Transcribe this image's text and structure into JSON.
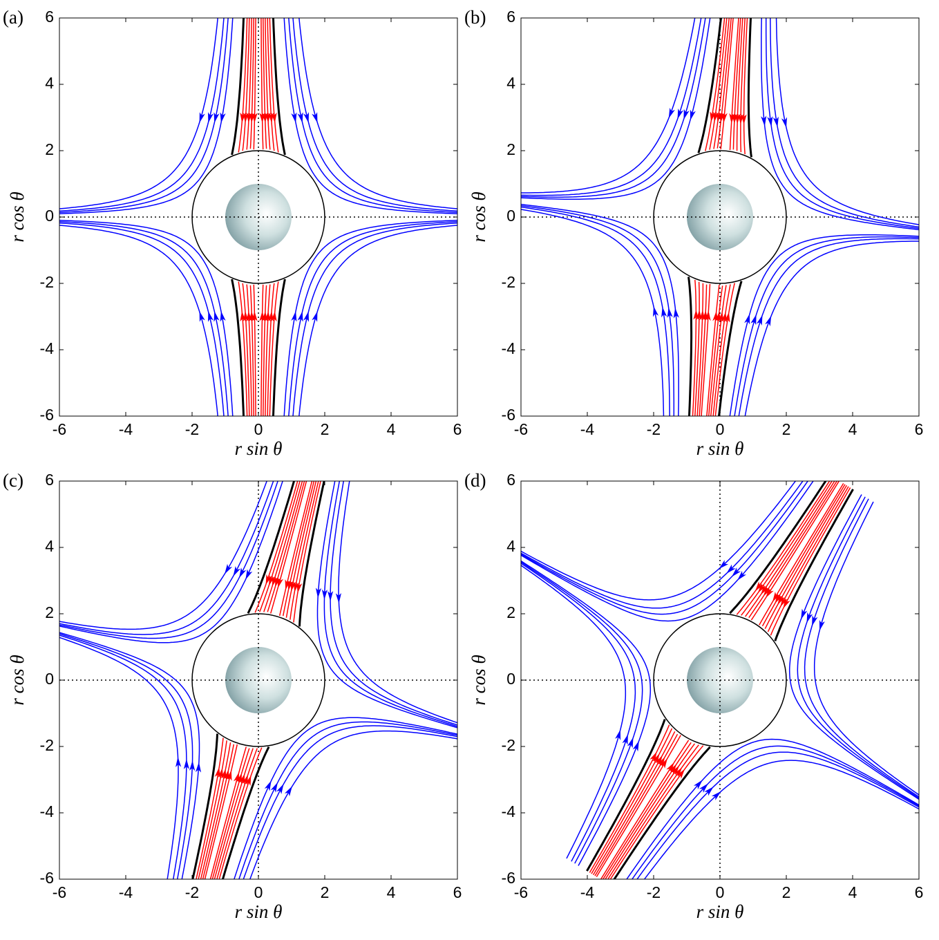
{
  "chart_data": [
    {
      "type": "streamline",
      "panel_label": "(a)",
      "xlabel": "r sin θ",
      "ylabel": "r cos θ",
      "xlim": [
        -6,
        6
      ],
      "ylim": [
        -6,
        6
      ],
      "xticks": [
        -6,
        -4,
        -2,
        0,
        2,
        4,
        6
      ],
      "yticks": [
        -6,
        -4,
        -2,
        0,
        2,
        4,
        6
      ]
    },
    {
      "type": "streamline",
      "panel_label": "(b)",
      "xlabel": "r sin θ",
      "ylabel": "r cos θ",
      "xlim": [
        -6,
        6
      ],
      "ylim": [
        -6,
        6
      ],
      "xticks": [
        -6,
        -4,
        -2,
        0,
        2,
        4,
        6
      ],
      "yticks": [
        -6,
        -4,
        -2,
        0,
        2,
        4,
        6
      ]
    },
    {
      "type": "streamline",
      "panel_label": "(c)",
      "xlabel": "r sin θ",
      "ylabel": "r cos θ",
      "xlim": [
        -6,
        6
      ],
      "ylim": [
        -6,
        6
      ],
      "xticks": [
        -6,
        -4,
        -2,
        0,
        2,
        4,
        6
      ],
      "yticks": [
        -6,
        -4,
        -2,
        0,
        2,
        4,
        6
      ]
    },
    {
      "type": "streamline",
      "panel_label": "(d)",
      "xlabel": "r sin θ",
      "ylabel": "r cos θ",
      "xlim": [
        -6,
        6
      ],
      "ylim": [
        -6,
        6
      ],
      "xticks": [
        -6,
        -4,
        -2,
        0,
        2,
        4,
        6
      ],
      "yticks": [
        -6,
        -4,
        -2,
        0,
        2,
        4,
        6
      ]
    }
  ]
}
